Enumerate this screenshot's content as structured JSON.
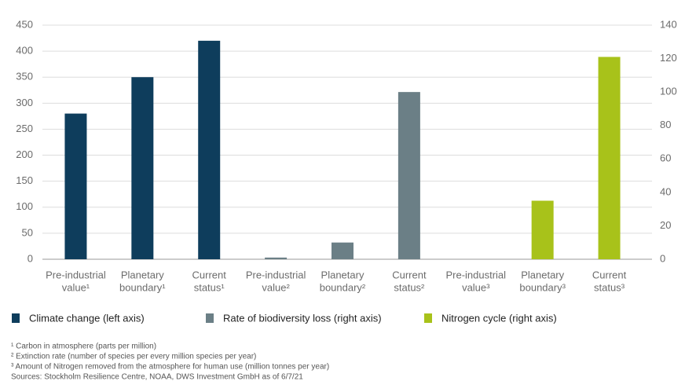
{
  "chart_data": {
    "type": "bar",
    "categories": [
      [
        "Pre-industrial",
        "value¹"
      ],
      [
        "Planetary",
        "boundary¹"
      ],
      [
        "Current",
        "status¹"
      ],
      [
        "Pre-industrial",
        "value²"
      ],
      [
        "Planetary",
        "boundary²"
      ],
      [
        "Current",
        "status²"
      ],
      [
        "Pre-industrial",
        "value³"
      ],
      [
        "Planetary",
        "boundary³"
      ],
      [
        "Current",
        "status³"
      ]
    ],
    "series": [
      {
        "name": "Climate change (left axis)",
        "color": "#0e3d5c",
        "values": [
          280,
          350,
          420,
          null,
          null,
          null,
          null,
          null,
          null
        ]
      },
      {
        "name": "Rate of biodiversity loss (right axis)",
        "color": "#6b7f86",
        "axis": "y2",
        "values": [
          null,
          null,
          null,
          1,
          10,
          100,
          null,
          null,
          null
        ]
      },
      {
        "name": "Nitrogen cycle (right axis)",
        "color": "#a8c21a",
        "axis": "y2",
        "values": [
          null,
          null,
          null,
          null,
          null,
          null,
          0,
          35,
          121
        ]
      }
    ],
    "ylim": [
      0,
      450
    ],
    "yticks": [
      0,
      50,
      100,
      150,
      200,
      250,
      300,
      350,
      400,
      450
    ],
    "y2lim": [
      0,
      140
    ],
    "y2ticks": [
      0,
      20,
      40,
      60,
      80,
      100,
      120,
      140
    ],
    "grid": true,
    "footnotes": [
      "¹ Carbon in atmosphere (parts per million)",
      "² Extinction rate (number of species per every million species per year)",
      "³ Amount of Nitrogen removed from the atmosphere for human use (million tonnes per year)",
      "Sources: Stockholm Resilience Centre, NOAA, DWS Investment GmbH as of 6/7/21"
    ]
  }
}
